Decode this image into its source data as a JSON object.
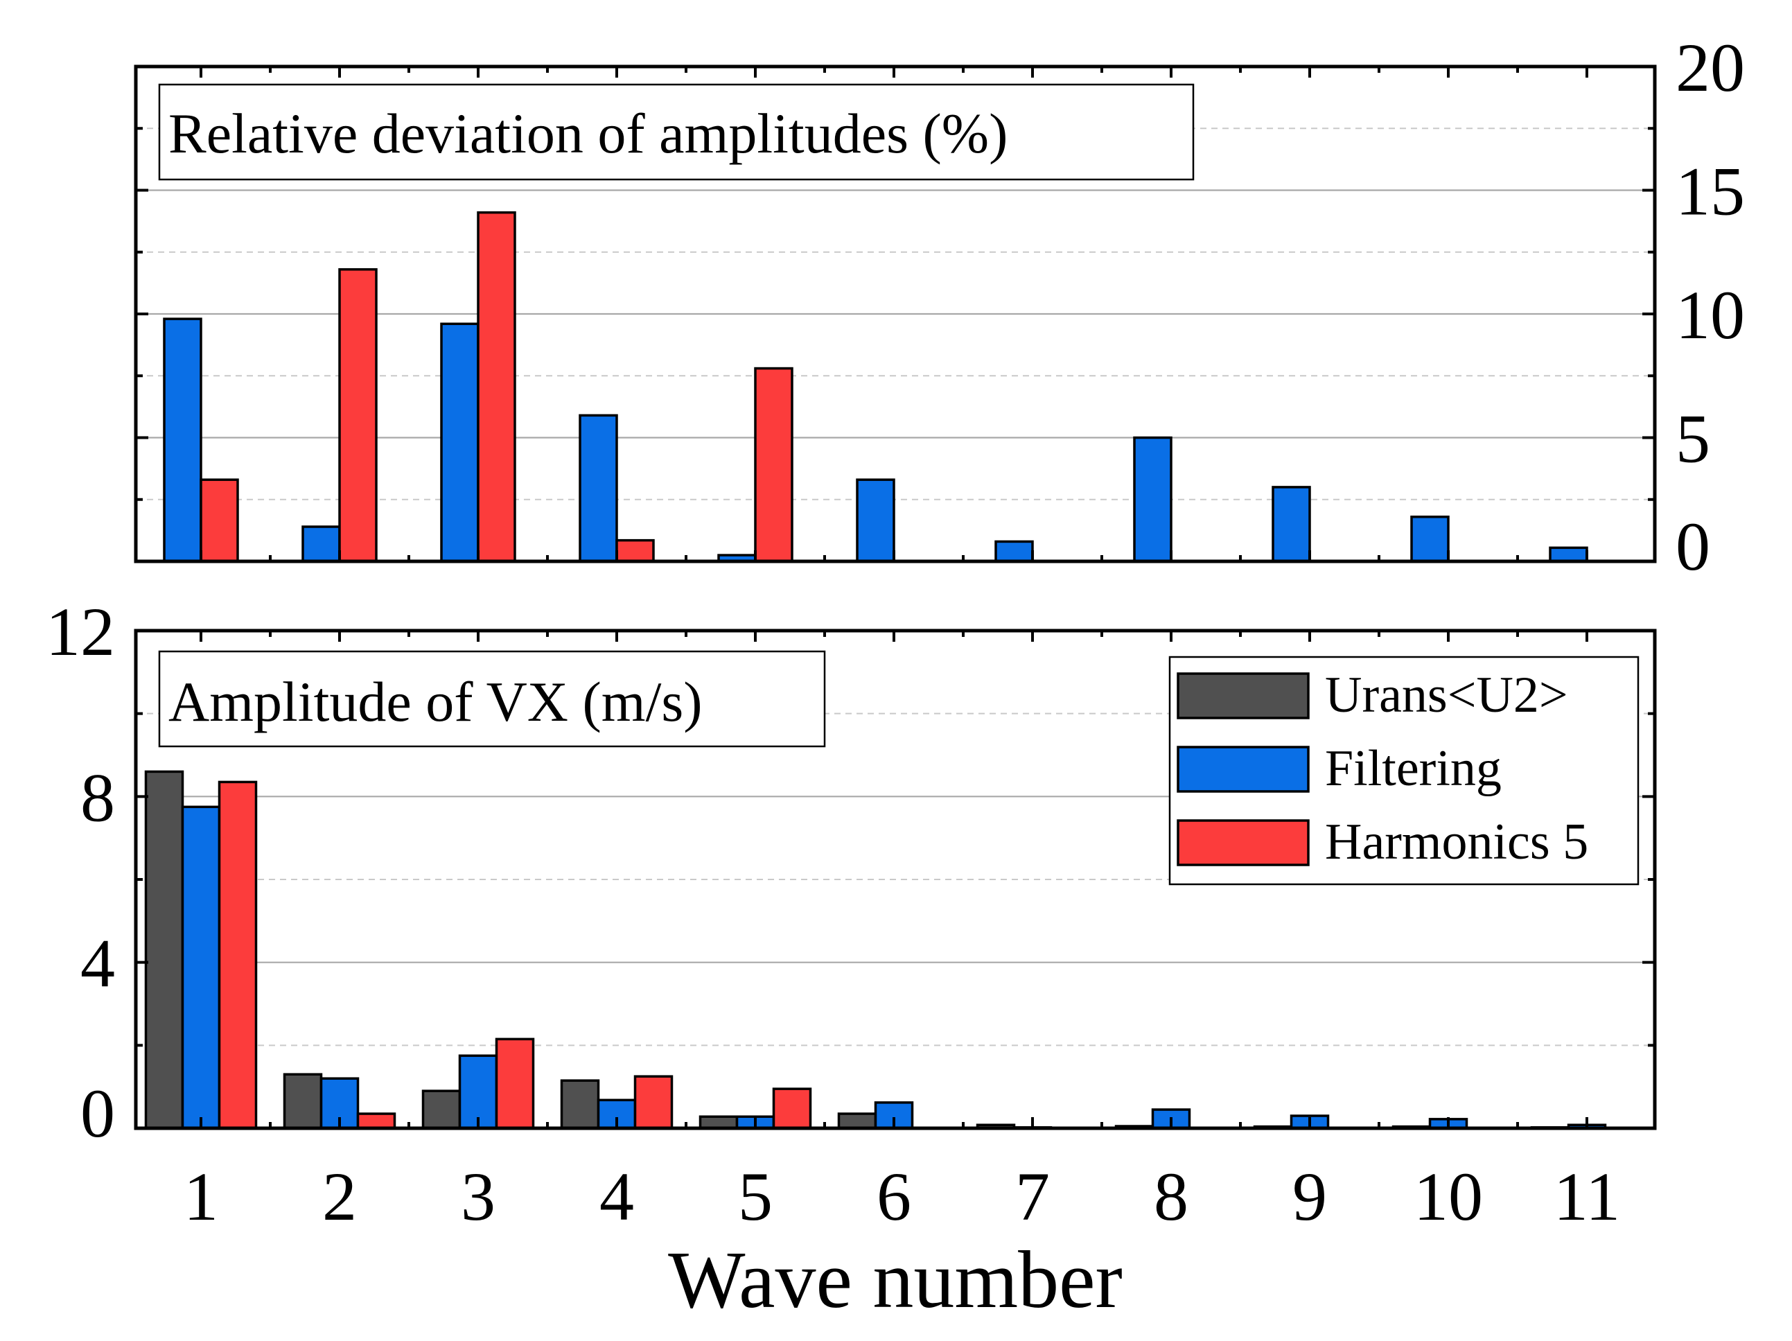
{
  "chart_data": [
    {
      "type": "bar",
      "title": "Relative deviation of amplitudes (%)",
      "xlabel": "",
      "ylabel": "",
      "categories": [
        "1",
        "2",
        "3",
        "4",
        "5",
        "6",
        "7",
        "8",
        "9",
        "10",
        "11"
      ],
      "ylim": [
        0,
        20
      ],
      "yticks": [
        "0",
        "5",
        "10",
        "15",
        "20"
      ],
      "ytick_values": [
        0,
        5,
        10,
        15,
        20
      ],
      "yaxis_side": "right",
      "grid": true,
      "series": [
        {
          "name": "Filtering",
          "color": "#0a6fe6",
          "values": [
            9.8,
            1.4,
            9.6,
            5.9,
            0.25,
            3.3,
            0.8,
            5.0,
            3.0,
            1.8,
            0.55
          ]
        },
        {
          "name": "Harmonics 5",
          "color": "#fc3c3c",
          "values": [
            3.3,
            11.8,
            14.1,
            0.85,
            7.8,
            null,
            null,
            null,
            null,
            null,
            null
          ]
        }
      ]
    },
    {
      "type": "bar",
      "title": "Amplitude of VX (m/s)",
      "xlabel": "Wave number",
      "ylabel": "",
      "categories": [
        "1",
        "2",
        "3",
        "4",
        "5",
        "6",
        "7",
        "8",
        "9",
        "10",
        "11"
      ],
      "ylim": [
        0,
        12
      ],
      "yticks": [
        "0",
        "4",
        "8",
        "12"
      ],
      "ytick_values": [
        0,
        4,
        8,
        12
      ],
      "yaxis_side": "left",
      "grid": true,
      "legend": {
        "position": "top-right",
        "entries": [
          {
            "label": "Urans<U2>",
            "color": "#505050"
          },
          {
            "label": "Filtering",
            "color": "#0a6fe6"
          },
          {
            "label": "Harmonics 5",
            "color": "#fc3c3c"
          }
        ]
      },
      "series": [
        {
          "name": "Urans<U2>",
          "color": "#505050",
          "values": [
            8.6,
            1.3,
            0.9,
            1.15,
            0.28,
            0.35,
            0.08,
            0.05,
            0.04,
            0.04,
            0.02
          ]
        },
        {
          "name": "Filtering",
          "color": "#0a6fe6",
          "values": [
            7.75,
            1.2,
            1.75,
            0.68,
            0.28,
            0.62,
            0.02,
            0.45,
            0.3,
            0.22,
            0.08
          ]
        },
        {
          "name": "Harmonics 5",
          "color": "#fc3c3c",
          "values": [
            8.35,
            0.35,
            2.15,
            1.25,
            0.95,
            null,
            null,
            null,
            null,
            null,
            null
          ]
        }
      ]
    }
  ]
}
